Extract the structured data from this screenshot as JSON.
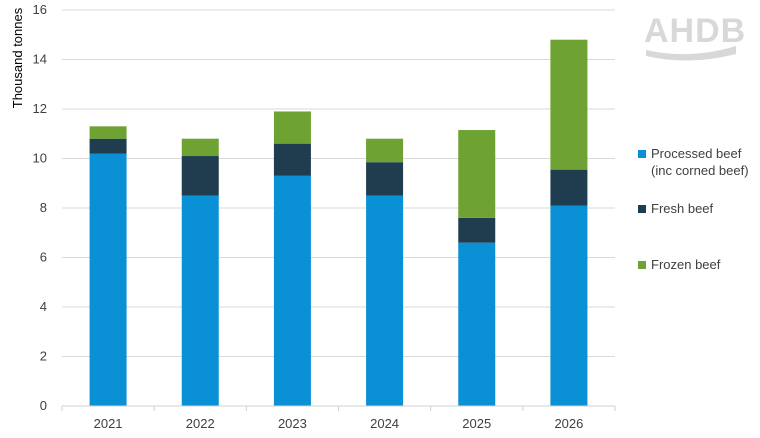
{
  "logo": {
    "text": "AHDB"
  },
  "chart_data": {
    "type": "bar",
    "stacked": true,
    "categories": [
      "2021",
      "2022",
      "2023",
      "2024",
      "2025",
      "2026"
    ],
    "series": [
      {
        "name": "Processed beef (inc corned beef)",
        "legend_lines": [
          "Processed beef",
          "(inc corned beef)"
        ],
        "color": "#0a90d4",
        "values": [
          10.2,
          8.5,
          9.3,
          8.5,
          6.6,
          8.1
        ]
      },
      {
        "name": "Fresh beef",
        "legend_lines": [
          "Fresh beef"
        ],
        "color": "#1f3d4f",
        "values": [
          0.6,
          1.6,
          1.3,
          1.35,
          1.0,
          1.45
        ]
      },
      {
        "name": "Frozen beef",
        "legend_lines": [
          "Frozen beef"
        ],
        "color": "#6ea232",
        "values": [
          0.5,
          0.7,
          1.3,
          0.95,
          3.55,
          5.25
        ]
      }
    ],
    "ylabel": "Thousand tonnes",
    "xlabel": "",
    "ylim": [
      0,
      16
    ],
    "yticks": [
      0,
      2,
      4,
      6,
      8,
      10,
      12,
      14,
      16
    ],
    "grid": true,
    "legend": "right"
  }
}
